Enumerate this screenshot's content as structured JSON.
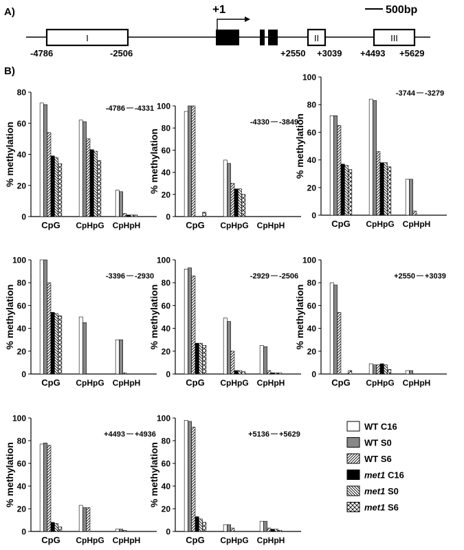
{
  "panel_labels": {
    "a": "A)",
    "b": "B)"
  },
  "gene_map": {
    "tss_label": "+1",
    "scale_label": "500bp",
    "regions": [
      {
        "id": "I",
        "label": "I",
        "start_label": "-4786",
        "end_label": "-2506"
      },
      {
        "id": "II",
        "label": "II",
        "start_label": "+2550",
        "end_label": "+3039"
      },
      {
        "id": "III",
        "label": "III",
        "start_label": "+4493",
        "end_label": "+5629"
      }
    ]
  },
  "legend": {
    "entries": [
      {
        "genotype": "WT",
        "sample": "C16",
        "italic": false,
        "style": "white"
      },
      {
        "genotype": "WT",
        "sample": "S0",
        "italic": false,
        "style": "gray"
      },
      {
        "genotype": "WT",
        "sample": "S6",
        "italic": false,
        "style": "hatch-right"
      },
      {
        "genotype": "met1",
        "sample": "C16",
        "italic": true,
        "style": "black"
      },
      {
        "genotype": "met1",
        "sample": "S0",
        "italic": true,
        "style": "hatch-left"
      },
      {
        "genotype": "met1",
        "sample": "S6",
        "italic": true,
        "style": "cross"
      }
    ]
  },
  "chart_data": [
    {
      "type": "bar",
      "region_start": "-4786",
      "region_end": "-4331",
      "ylabel": "% methylation",
      "ylim": [
        0,
        80
      ],
      "yticks": [
        0,
        20,
        40,
        60,
        80
      ],
      "categories": [
        "CpG",
        "CpHpG",
        "CpHpH"
      ],
      "series": [
        {
          "name": "WT C16",
          "values": [
            73,
            62,
            17
          ]
        },
        {
          "name": "WT S0",
          "values": [
            72,
            61,
            16
          ]
        },
        {
          "name": "WT S6",
          "values": [
            54,
            50,
            2
          ]
        },
        {
          "name": "met1 C16",
          "values": [
            39,
            43,
            1
          ]
        },
        {
          "name": "met1 S0",
          "values": [
            38,
            42,
            1
          ]
        },
        {
          "name": "met1 S6",
          "values": [
            34,
            36,
            1
          ]
        }
      ]
    },
    {
      "type": "bar",
      "region_start": "-4330",
      "region_end": "-3849",
      "ylabel": "% methylation",
      "ylim": [
        0,
        100
      ],
      "yticks": [
        0,
        20,
        40,
        60,
        80,
        100
      ],
      "categories": [
        "CpG",
        "CpHpG",
        "CpHpH"
      ],
      "series": [
        {
          "name": "WT C16",
          "values": [
            95,
            51,
            0
          ]
        },
        {
          "name": "WT S0",
          "values": [
            100,
            48,
            0
          ]
        },
        {
          "name": "WT S6",
          "values": [
            100,
            30,
            0
          ]
        },
        {
          "name": "met1 C16",
          "values": [
            0,
            25,
            0
          ]
        },
        {
          "name": "met1 S0",
          "values": [
            0,
            25,
            0
          ]
        },
        {
          "name": "met1 S6",
          "values": [
            4,
            20,
            0
          ]
        }
      ]
    },
    {
      "type": "bar",
      "region_start": "-3744",
      "region_end": "-3279",
      "ylabel": "% methylation",
      "ylim": [
        0,
        100
      ],
      "yticks": [
        0,
        20,
        40,
        60,
        80,
        100
      ],
      "categories": [
        "CpG",
        "CpHpG",
        "CpHpH"
      ],
      "series": [
        {
          "name": "WT C16",
          "values": [
            72,
            84,
            26
          ]
        },
        {
          "name": "WT S0",
          "values": [
            72,
            83,
            26
          ]
        },
        {
          "name": "WT S6",
          "values": [
            65,
            46,
            3
          ]
        },
        {
          "name": "met1 C16",
          "values": [
            37,
            38,
            0
          ]
        },
        {
          "name": "met1 S0",
          "values": [
            36,
            38,
            0
          ]
        },
        {
          "name": "met1 S6",
          "values": [
            33,
            35,
            0
          ]
        }
      ]
    },
    {
      "type": "bar",
      "region_start": "-3396",
      "region_end": "-2930",
      "ylabel": "% methylation",
      "ylim": [
        0,
        100
      ],
      "yticks": [
        0,
        20,
        40,
        60,
        80,
        100
      ],
      "categories": [
        "CpG",
        "CpHpG",
        "CpHpH"
      ],
      "series": [
        {
          "name": "WT C16",
          "values": [
            100,
            50,
            30
          ]
        },
        {
          "name": "WT S0",
          "values": [
            100,
            45,
            30
          ]
        },
        {
          "name": "WT S6",
          "values": [
            80,
            0,
            1
          ]
        },
        {
          "name": "met1 C16",
          "values": [
            54,
            0,
            0
          ]
        },
        {
          "name": "met1 S0",
          "values": [
            53,
            0,
            0
          ]
        },
        {
          "name": "met1 S6",
          "values": [
            51,
            0,
            0
          ]
        }
      ]
    },
    {
      "type": "bar",
      "region_start": "-2929",
      "region_end": "-2506",
      "ylabel": "% methylation",
      "ylim": [
        0,
        100
      ],
      "yticks": [
        0,
        20,
        40,
        60,
        80,
        100
      ],
      "categories": [
        "CpG",
        "CpHpG",
        "CpHpH"
      ],
      "series": [
        {
          "name": "WT C16",
          "values": [
            92,
            49,
            25
          ]
        },
        {
          "name": "WT S0",
          "values": [
            93,
            46,
            24
          ]
        },
        {
          "name": "WT S6",
          "values": [
            86,
            20,
            3
          ]
        },
        {
          "name": "met1 C16",
          "values": [
            27,
            3,
            1
          ]
        },
        {
          "name": "met1 S0",
          "values": [
            27,
            3,
            1
          ]
        },
        {
          "name": "met1 S6",
          "values": [
            25,
            2,
            1
          ]
        }
      ]
    },
    {
      "type": "bar",
      "region_start": "+2550",
      "region_end": "+3039",
      "ylabel": "% methylation",
      "ylim": [
        0,
        100
      ],
      "yticks": [
        0,
        20,
        40,
        60,
        80,
        100
      ],
      "categories": [
        "CpG",
        "CpHpG",
        "CpHpH"
      ],
      "series": [
        {
          "name": "WT C16",
          "values": [
            80,
            9,
            3
          ]
        },
        {
          "name": "WT S0",
          "values": [
            78,
            8,
            3
          ]
        },
        {
          "name": "WT S6",
          "values": [
            54,
            8,
            0
          ]
        },
        {
          "name": "met1 C16",
          "values": [
            0,
            9,
            0
          ]
        },
        {
          "name": "met1 S0",
          "values": [
            0,
            8,
            0
          ]
        },
        {
          "name": "met1 S6",
          "values": [
            3,
            4,
            0
          ]
        }
      ]
    },
    {
      "type": "bar",
      "region_start": "+4493",
      "region_end": "+4936",
      "ylabel": "% methylation",
      "ylim": [
        0,
        100
      ],
      "yticks": [
        0,
        20,
        40,
        60,
        80,
        100
      ],
      "categories": [
        "CpG",
        "CpHpG",
        "CpHpH"
      ],
      "series": [
        {
          "name": "WT C16",
          "values": [
            77,
            23,
            2
          ]
        },
        {
          "name": "WT S0",
          "values": [
            78,
            21,
            2
          ]
        },
        {
          "name": "WT S6",
          "values": [
            76,
            21,
            1
          ]
        },
        {
          "name": "met1 C16",
          "values": [
            8,
            0,
            0
          ]
        },
        {
          "name": "met1 S0",
          "values": [
            7,
            0,
            0
          ]
        },
        {
          "name": "met1 S6",
          "values": [
            4,
            0,
            0
          ]
        }
      ]
    },
    {
      "type": "bar",
      "region_start": "+5136",
      "region_end": "+5629",
      "ylabel": "% methylation",
      "ylim": [
        0,
        100
      ],
      "yticks": [
        0,
        20,
        40,
        60,
        80,
        100
      ],
      "categories": [
        "CpG",
        "CpHpG",
        "CpHpH"
      ],
      "series": [
        {
          "name": "WT C16",
          "values": [
            98,
            6,
            9
          ]
        },
        {
          "name": "WT S0",
          "values": [
            97,
            6,
            9
          ]
        },
        {
          "name": "WT S6",
          "values": [
            92,
            3,
            3
          ]
        },
        {
          "name": "met1 C16",
          "values": [
            13,
            0,
            2
          ]
        },
        {
          "name": "met1 S0",
          "values": [
            11,
            0,
            2
          ]
        },
        {
          "name": "met1 S6",
          "values": [
            8,
            0,
            1
          ]
        }
      ]
    }
  ]
}
